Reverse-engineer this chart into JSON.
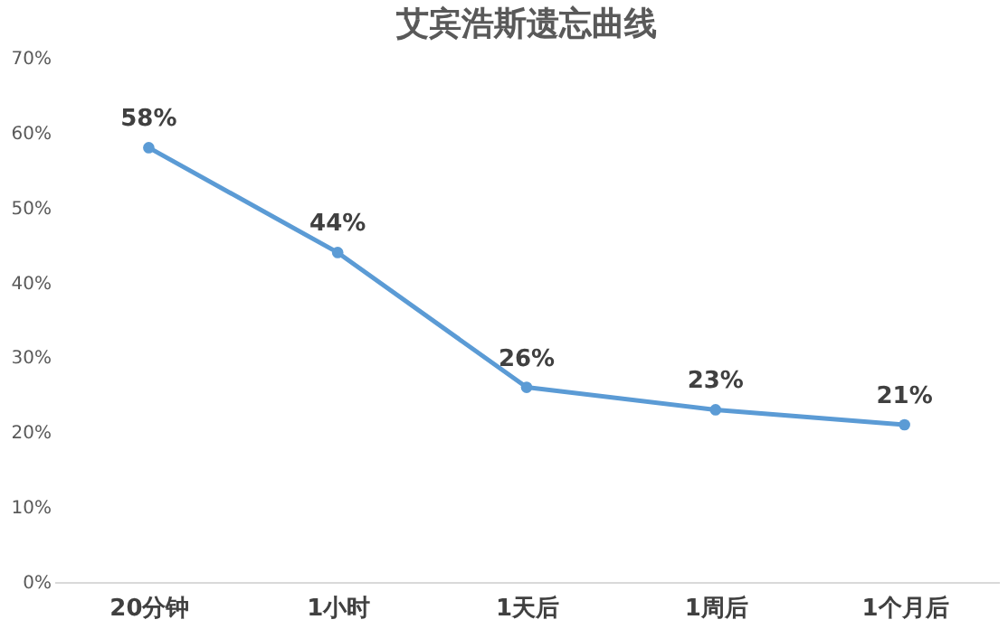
{
  "chart_data": {
    "type": "line",
    "title": "艾宾浩斯遗忘曲线",
    "categories": [
      "20分钟",
      "1小时",
      "1天后",
      "1周后",
      "1个月后"
    ],
    "series": [
      {
        "color": "#5b9bd5",
        "values": [
          58,
          44,
          26,
          23,
          21
        ],
        "value_labels": [
          "58%",
          "44%",
          "26%",
          "23%",
          "21%"
        ]
      }
    ],
    "ylim": [
      0,
      70
    ],
    "yticks": [
      {
        "value": 0,
        "label": "0%"
      },
      {
        "value": 10,
        "label": "10%"
      },
      {
        "value": 20,
        "label": "20%"
      },
      {
        "value": 30,
        "label": "30%"
      },
      {
        "value": 40,
        "label": "40%"
      },
      {
        "value": 50,
        "label": "50%"
      },
      {
        "value": 60,
        "label": "60%"
      },
      {
        "value": 70,
        "label": "70%"
      }
    ],
    "grid": false,
    "marker": "circle",
    "line_style": "solid"
  }
}
